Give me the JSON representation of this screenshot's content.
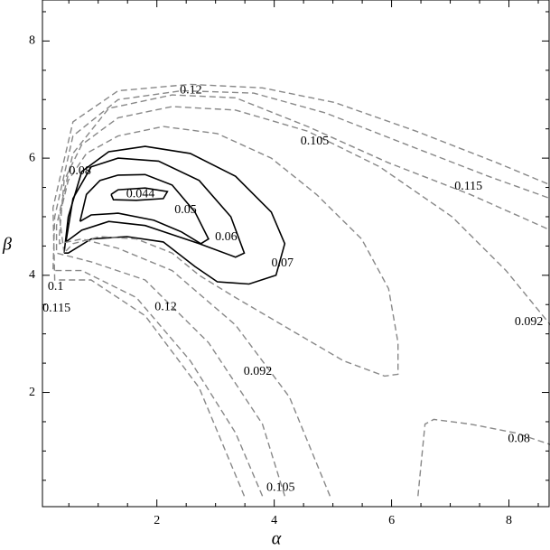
{
  "chart_data": {
    "type": "contour",
    "x_label": "α",
    "y_label": "β",
    "xlim": [
      0.05,
      8.7
    ],
    "ylim": [
      0.05,
      8.7
    ],
    "xticks": [
      2,
      4,
      6,
      8
    ],
    "yticks": [
      2,
      4,
      6,
      8
    ],
    "xminorticks": [
      0.5,
      1,
      1.5,
      2.5,
      3,
      3.5,
      4.5,
      5,
      5.5,
      6.5,
      7,
      7.5,
      8.5
    ],
    "yminorticks": [
      0.5,
      1,
      1.5,
      2.5,
      3,
      3.5,
      4.5,
      5,
      5.5,
      6.5,
      7,
      7.5,
      8.5
    ],
    "contours": [
      {
        "level": 0.044,
        "style": "solid",
        "color": "#000000",
        "x": [
          1.22,
          1.34,
          1.8,
          2.18,
          2.11,
          1.65,
          1.26,
          1.22
        ],
        "y": [
          5.38,
          5.46,
          5.49,
          5.43,
          5.31,
          5.28,
          5.29,
          5.38
        ],
        "label_at": [
          [
            1.72,
            5.38
          ]
        ]
      },
      {
        "level": 0.05,
        "style": "solid",
        "color": "#000000",
        "x": [
          0.69,
          0.8,
          1.03,
          1.34,
          1.8,
          2.26,
          2.65,
          2.88,
          2.75,
          2.42,
          1.95,
          1.34,
          0.88,
          0.69
        ],
        "y": [
          4.92,
          5.38,
          5.62,
          5.71,
          5.72,
          5.54,
          5.08,
          4.62,
          4.54,
          4.74,
          4.94,
          5.06,
          5.03,
          4.92
        ],
        "label_at": [
          [
            2.49,
            5.11
          ]
        ]
      },
      {
        "level": 0.06,
        "style": "solid",
        "color": "#000000",
        "x": [
          0.45,
          0.57,
          0.88,
          1.34,
          2.03,
          2.72,
          3.26,
          3.49,
          3.34,
          2.72,
          1.8,
          1.18,
          0.72,
          0.45
        ],
        "y": [
          4.57,
          5.31,
          5.85,
          6.0,
          5.95,
          5.62,
          5.0,
          4.38,
          4.31,
          4.54,
          4.85,
          4.92,
          4.77,
          4.57
        ],
        "label_at": [
          [
            3.18,
            4.65
          ]
        ]
      },
      {
        "level": 0.07,
        "style": "solid",
        "color": "#000000",
        "x": [
          0.42,
          0.49,
          0.72,
          1.18,
          1.8,
          2.57,
          3.34,
          3.95,
          4.18,
          4.03,
          3.57,
          3.03,
          2.65,
          2.11,
          1.49,
          0.88,
          0.49,
          0.42
        ],
        "y": [
          4.38,
          5.0,
          5.77,
          6.11,
          6.2,
          6.08,
          5.69,
          5.08,
          4.54,
          4.0,
          3.85,
          3.89,
          4.15,
          4.57,
          4.66,
          4.62,
          4.38,
          4.38
        ],
        "label_at": [
          [
            4.14,
            4.2
          ]
        ]
      },
      {
        "level": 0.08,
        "style": "dashed",
        "color": "#888888",
        "x": [
          0.42,
          0.34,
          0.49,
          0.8,
          1.34,
          2.11,
          3.03,
          3.95,
          4.72,
          5.49,
          5.95,
          6.11,
          6.11,
          5.88,
          5.18,
          4.26,
          3.34,
          2.72,
          2.26,
          1.65,
          1.03,
          0.57,
          0.42
        ],
        "y": [
          4.38,
          5.0,
          5.62,
          6.08,
          6.38,
          6.54,
          6.42,
          6.0,
          5.38,
          4.62,
          3.77,
          2.85,
          2.31,
          2.28,
          2.54,
          3.08,
          3.62,
          4.0,
          4.38,
          4.62,
          4.66,
          4.54,
          4.38
        ],
        "label_at": [
          [
            0.69,
            5.77
          ]
        ]
      },
      {
        "level": 0.08,
        "style": "dashed",
        "color": "#888888",
        "x": [
          6.45,
          6.57,
          6.72,
          7.34,
          8.11,
          8.71
        ],
        "y": [
          0.23,
          1.46,
          1.54,
          1.46,
          1.31,
          1.11
        ],
        "label_at": [
          [
            8.17,
            1.2
          ]
        ]
      },
      {
        "level": 0.092,
        "style": "dashed",
        "color": "#888888",
        "x": [
          4.95,
          4.26,
          3.34,
          2.26,
          1.34,
          0.72,
          0.34,
          0.34,
          0.42,
          0.72,
          1.34,
          2.26,
          3.34,
          4.57,
          5.8,
          7.03,
          7.95,
          8.71
        ],
        "y": [
          0.23,
          1.92,
          3.15,
          4.08,
          4.46,
          4.62,
          4.54,
          4.69,
          5.62,
          6.23,
          6.69,
          6.88,
          6.82,
          6.46,
          5.85,
          5.0,
          4.08,
          3.15
        ],
        "label_at": [
          [
            8.34,
            3.2
          ],
          [
            3.72,
            2.35
          ]
        ]
      },
      {
        "level": 0.105,
        "style": "dashed",
        "color": "#888888",
        "x": [
          4.18,
          3.8,
          2.88,
          1.8,
          0.88,
          0.29,
          0.29,
          0.57,
          1.18,
          2.26,
          3.34,
          4.57,
          5.95,
          7.34,
          8.71
        ],
        "y": [
          0.23,
          1.46,
          2.85,
          3.92,
          4.23,
          4.38,
          4.85,
          6.08,
          6.85,
          7.08,
          7.03,
          6.54,
          5.92,
          5.38,
          4.77
        ],
        "label_at": [
          [
            4.69,
            6.28
          ],
          [
            4.11,
            0.37
          ]
        ]
      },
      {
        "level": 0.115,
        "style": "dashed",
        "color": "#888888",
        "x": [
          3.8,
          3.34,
          2.57,
          1.65,
          0.72,
          0.23,
          0.26,
          0.57,
          1.34,
          2.42,
          3.65,
          4.88,
          6.26,
          7.65,
          8.71
        ],
        "y": [
          0.23,
          1.31,
          2.54,
          3.62,
          4.08,
          4.08,
          5.0,
          6.38,
          7.0,
          7.15,
          7.11,
          6.77,
          6.23,
          5.69,
          5.31
        ],
        "label_at": [
          [
            7.31,
            5.51
          ],
          [
            0.29,
            3.43
          ]
        ]
      },
      {
        "level": 0.12,
        "style": "dashed",
        "color": "#888888",
        "x": [
          3.49,
          2.72,
          1.8,
          0.88,
          0.26,
          0.23,
          0.57,
          1.34,
          2.57,
          3.8,
          5.03,
          6.42,
          7.8,
          8.71
        ],
        "y": [
          0.23,
          2.08,
          3.31,
          3.92,
          3.92,
          5.15,
          6.62,
          7.15,
          7.26,
          7.2,
          6.95,
          6.46,
          5.92,
          5.54
        ],
        "label_at": [
          [
            2.58,
            7.15
          ],
          [
            2.15,
            3.45
          ]
        ]
      }
    ],
    "annotations": [
      {
        "text": "0.1",
        "x": 0.14,
        "y": 3.8
      }
    ]
  }
}
